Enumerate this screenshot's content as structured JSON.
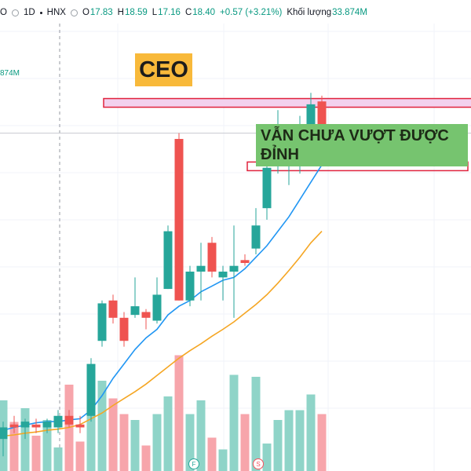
{
  "header": {
    "symbol": "O",
    "interval": "1D",
    "exchange": "HNX",
    "open_label": "O",
    "open": "17.83",
    "high_label": "H",
    "high": "18.59",
    "low_label": "L",
    "low": "17.16",
    "close_label": "C",
    "close": "18.40",
    "change": "+0.57 (+3.21%)",
    "volume_label": "Khối lượng",
    "volume": "33.874M"
  },
  "volume_partial_label": "874M",
  "annotations": {
    "ticker_box": "CEO",
    "note": "VẪN CHƯA VƯỢT ĐƯỢC ĐỈNH"
  },
  "markers": {
    "f": "F",
    "s": "S"
  },
  "colors": {
    "up": "#26a69a",
    "down": "#ef5350",
    "volume_up": "#8fd4c8",
    "volume_down": "#f7a5ab",
    "ma_fast": "#2196f3",
    "ma_slow": "#f5a623",
    "zone_fill": "#f3d1ee",
    "zone_border": "#e0223c"
  },
  "chart_data": {
    "type": "candlestick",
    "ylim": [
      11.5,
      19.8
    ],
    "candles": [
      {
        "o": 12.6,
        "h": 12.9,
        "l": 12.3,
        "c": 12.8
      },
      {
        "o": 12.85,
        "h": 13.0,
        "l": 12.7,
        "c": 12.8
      },
      {
        "o": 12.8,
        "h": 12.95,
        "l": 12.6,
        "c": 12.9
      },
      {
        "o": 12.85,
        "h": 12.95,
        "l": 12.7,
        "c": 12.8
      },
      {
        "o": 12.8,
        "h": 12.95,
        "l": 12.7,
        "c": 12.9
      },
      {
        "o": 12.8,
        "h": 13.1,
        "l": 12.7,
        "c": 13.0
      },
      {
        "o": 13.0,
        "h": 13.1,
        "l": 12.8,
        "c": 12.85
      },
      {
        "o": 12.85,
        "h": 13.0,
        "l": 12.7,
        "c": 12.8
      },
      {
        "o": 13.0,
        "h": 14.0,
        "l": 12.9,
        "c": 13.9
      },
      {
        "o": 14.3,
        "h": 15.0,
        "l": 14.2,
        "c": 14.95
      },
      {
        "o": 15.0,
        "h": 15.1,
        "l": 14.6,
        "c": 14.7
      },
      {
        "o": 14.7,
        "h": 14.8,
        "l": 14.2,
        "c": 14.3
      },
      {
        "o": 14.75,
        "h": 15.4,
        "l": 14.7,
        "c": 14.9
      },
      {
        "o": 14.8,
        "h": 14.85,
        "l": 14.5,
        "c": 14.7
      },
      {
        "o": 14.65,
        "h": 15.4,
        "l": 14.6,
        "c": 15.1
      },
      {
        "o": 15.2,
        "h": 16.3,
        "l": 15.2,
        "c": 16.2
      },
      {
        "o": 17.8,
        "h": 17.9,
        "l": 15.0,
        "c": 15.0
      },
      {
        "o": 15.0,
        "h": 15.6,
        "l": 14.9,
        "c": 15.5
      },
      {
        "o": 15.5,
        "h": 16.0,
        "l": 15.0,
        "c": 15.6
      },
      {
        "o": 16.0,
        "h": 16.1,
        "l": 15.4,
        "c": 15.5
      },
      {
        "o": 15.4,
        "h": 15.6,
        "l": 15.0,
        "c": 15.5
      },
      {
        "o": 15.5,
        "h": 16.3,
        "l": 14.7,
        "c": 15.6
      },
      {
        "o": 15.7,
        "h": 15.8,
        "l": 15.6,
        "c": 15.65
      },
      {
        "o": 15.9,
        "h": 16.6,
        "l": 15.8,
        "c": 16.3
      },
      {
        "o": 16.6,
        "h": 17.5,
        "l": 16.4,
        "c": 17.3
      },
      {
        "o": 17.5,
        "h": 18.3,
        "l": 17.2,
        "c": 17.6
      },
      {
        "o": 17.6,
        "h": 18.0,
        "l": 17.0,
        "c": 17.6
      },
      {
        "o": 17.6,
        "h": 18.2,
        "l": 17.2,
        "c": 17.7
      },
      {
        "o": 17.75,
        "h": 18.6,
        "l": 17.6,
        "c": 18.4
      },
      {
        "o": 18.45,
        "h": 18.55,
        "l": 17.6,
        "c": 17.85
      }
    ],
    "volume": [
      3.6,
      2.5,
      3.2,
      1.8,
      2.6,
      1.2,
      4.4,
      1.5,
      3.0,
      4.6,
      3.7,
      2.9,
      2.6,
      1.3,
      2.9,
      3.8,
      5.9,
      2.9,
      3.6,
      1.7,
      1.1,
      4.9,
      2.9,
      4.8,
      1.4,
      2.6,
      3.1,
      3.1,
      3.9,
      2.9
    ],
    "ma_fast": [
      12.75,
      12.8,
      12.84,
      12.88,
      12.9,
      12.9,
      12.93,
      12.95,
      13.1,
      13.35,
      13.65,
      13.9,
      14.15,
      14.35,
      14.5,
      14.75,
      14.9,
      15.0,
      15.15,
      15.25,
      15.35,
      15.4,
      15.55,
      15.75,
      15.95,
      16.2,
      16.45,
      16.75,
      17.05,
      17.35
    ],
    "ma_slow": [
      12.65,
      12.67,
      12.7,
      12.72,
      12.75,
      12.77,
      12.8,
      12.85,
      12.95,
      13.05,
      13.18,
      13.3,
      13.42,
      13.55,
      13.7,
      13.85,
      14.0,
      14.13,
      14.25,
      14.38,
      14.5,
      14.63,
      14.78,
      14.93,
      15.1,
      15.3,
      15.52,
      15.75,
      16.0,
      16.2
    ],
    "resistance_zone": [
      18.35,
      18.5
    ],
    "support_zone": [
      17.25,
      17.4
    ],
    "crosshair_price": 17.9
  }
}
